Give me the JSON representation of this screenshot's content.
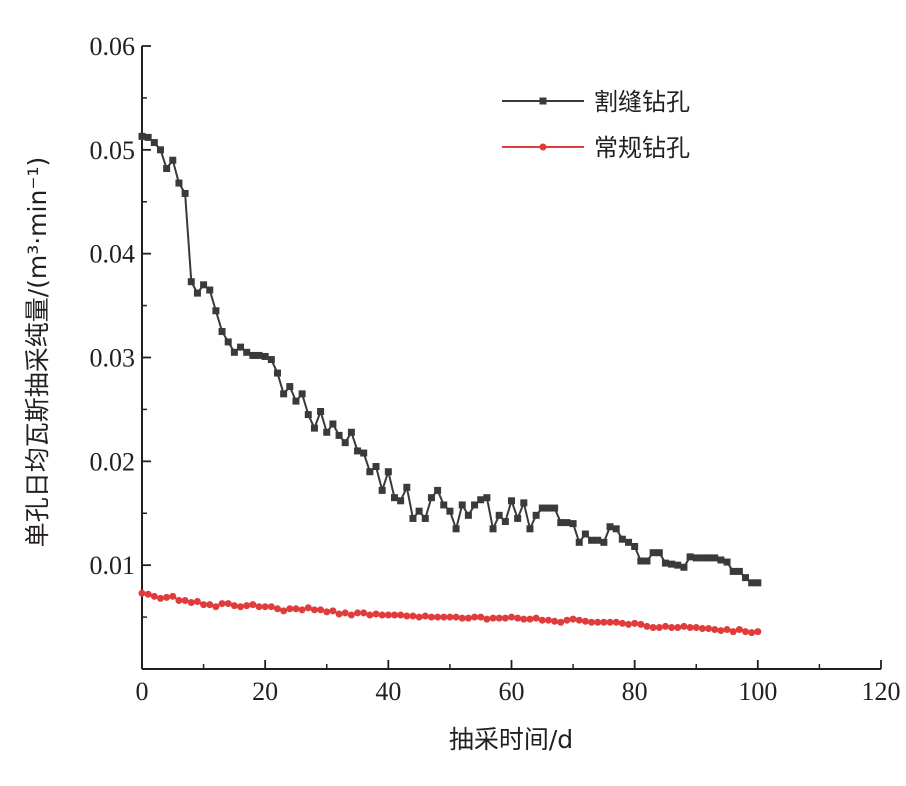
{
  "chart_data": {
    "type": "line",
    "xlabel": "抽采时间/d",
    "ylabel": "单孔日均瓦斯抽采纯量/(m³·min⁻¹)",
    "xlim": [
      0,
      120
    ],
    "ylim": [
      0,
      0.06
    ],
    "x_ticks": [
      "0",
      "20",
      "40",
      "60",
      "80",
      "100",
      "120"
    ],
    "y_ticks": [
      "0.01",
      "0.02",
      "0.03",
      "0.04",
      "0.05",
      "0.06"
    ],
    "legend_position": "top-right",
    "grid": false,
    "series": [
      {
        "name": "割缝钻孔",
        "color": "#3a3a3a",
        "marker": "square",
        "x": [
          0,
          1,
          2,
          3,
          4,
          5,
          6,
          7,
          8,
          9,
          10,
          11,
          12,
          13,
          14,
          15,
          16,
          17,
          18,
          19,
          20,
          21,
          22,
          23,
          24,
          25,
          26,
          27,
          28,
          29,
          30,
          31,
          32,
          33,
          34,
          35,
          36,
          37,
          38,
          39,
          40,
          41,
          42,
          43,
          44,
          45,
          46,
          47,
          48,
          49,
          50,
          51,
          52,
          53,
          54,
          55,
          56,
          57,
          58,
          59,
          60,
          61,
          62,
          63,
          64,
          65,
          66,
          67,
          68,
          69,
          70,
          71,
          72,
          73,
          74,
          75,
          76,
          77,
          78,
          79,
          80,
          81,
          82,
          83,
          84,
          85,
          86,
          87,
          88,
          89,
          90,
          91,
          92,
          93,
          94,
          95,
          96,
          97,
          98,
          99,
          100
        ],
        "values": [
          0.0513,
          0.0512,
          0.0507,
          0.05,
          0.0482,
          0.049,
          0.0468,
          0.0458,
          0.0373,
          0.0362,
          0.037,
          0.0365,
          0.0345,
          0.0325,
          0.0315,
          0.0305,
          0.031,
          0.0305,
          0.0302,
          0.0302,
          0.0301,
          0.0298,
          0.0285,
          0.0265,
          0.0272,
          0.0258,
          0.0265,
          0.0245,
          0.0232,
          0.0248,
          0.0228,
          0.0236,
          0.0225,
          0.0218,
          0.0228,
          0.021,
          0.0208,
          0.019,
          0.0195,
          0.0172,
          0.019,
          0.0165,
          0.0162,
          0.0175,
          0.0145,
          0.0152,
          0.0145,
          0.0165,
          0.0172,
          0.0158,
          0.0152,
          0.0135,
          0.0158,
          0.0148,
          0.0158,
          0.0163,
          0.0165,
          0.0135,
          0.0148,
          0.0142,
          0.0162,
          0.0145,
          0.016,
          0.0135,
          0.0148,
          0.0155,
          0.0155,
          0.0155,
          0.0141,
          0.0141,
          0.014,
          0.0122,
          0.013,
          0.0124,
          0.0124,
          0.0122,
          0.0137,
          0.0135,
          0.0125,
          0.0122,
          0.0118,
          0.0104,
          0.0104,
          0.0112,
          0.0112,
          0.0102,
          0.0101,
          0.01,
          0.0098,
          0.0108,
          0.0107,
          0.0107,
          0.0107,
          0.0107,
          0.0105,
          0.0103,
          0.0094,
          0.0094,
          0.0088,
          0.0083,
          0.0083
        ]
      },
      {
        "name": "常规钻孔",
        "color": "#e03c3c",
        "marker": "circle",
        "x": [
          0,
          1,
          2,
          3,
          4,
          5,
          6,
          7,
          8,
          9,
          10,
          11,
          12,
          13,
          14,
          15,
          16,
          17,
          18,
          19,
          20,
          21,
          22,
          23,
          24,
          25,
          26,
          27,
          28,
          29,
          30,
          31,
          32,
          33,
          34,
          35,
          36,
          37,
          38,
          39,
          40,
          41,
          42,
          43,
          44,
          45,
          46,
          47,
          48,
          49,
          50,
          51,
          52,
          53,
          54,
          55,
          56,
          57,
          58,
          59,
          60,
          61,
          62,
          63,
          64,
          65,
          66,
          67,
          68,
          69,
          70,
          71,
          72,
          73,
          74,
          75,
          76,
          77,
          78,
          79,
          80,
          81,
          82,
          83,
          84,
          85,
          86,
          87,
          88,
          89,
          90,
          91,
          92,
          93,
          94,
          95,
          96,
          97,
          98,
          99,
          100
        ],
        "values": [
          0.0073,
          0.0072,
          0.007,
          0.0068,
          0.0069,
          0.007,
          0.0066,
          0.0066,
          0.0064,
          0.0065,
          0.0062,
          0.0062,
          0.006,
          0.0063,
          0.0063,
          0.0061,
          0.006,
          0.0061,
          0.0062,
          0.006,
          0.006,
          0.006,
          0.0058,
          0.0056,
          0.0058,
          0.0058,
          0.0057,
          0.0059,
          0.0057,
          0.0057,
          0.0055,
          0.0056,
          0.0053,
          0.0054,
          0.0052,
          0.0054,
          0.0054,
          0.0052,
          0.0053,
          0.0052,
          0.0052,
          0.0052,
          0.0052,
          0.0051,
          0.0051,
          0.005,
          0.0051,
          0.005,
          0.005,
          0.005,
          0.005,
          0.005,
          0.0049,
          0.0049,
          0.005,
          0.005,
          0.0048,
          0.0049,
          0.0049,
          0.0049,
          0.005,
          0.0049,
          0.0048,
          0.0048,
          0.0049,
          0.0047,
          0.0047,
          0.0046,
          0.0045,
          0.0047,
          0.0048,
          0.0047,
          0.0046,
          0.0045,
          0.0045,
          0.0045,
          0.0045,
          0.0045,
          0.0044,
          0.0043,
          0.0044,
          0.0043,
          0.0041,
          0.004,
          0.004,
          0.0041,
          0.004,
          0.004,
          0.0041,
          0.004,
          0.004,
          0.0039,
          0.0039,
          0.0038,
          0.0037,
          0.0038,
          0.0036,
          0.0038,
          0.0036,
          0.0035,
          0.0036
        ]
      }
    ]
  }
}
